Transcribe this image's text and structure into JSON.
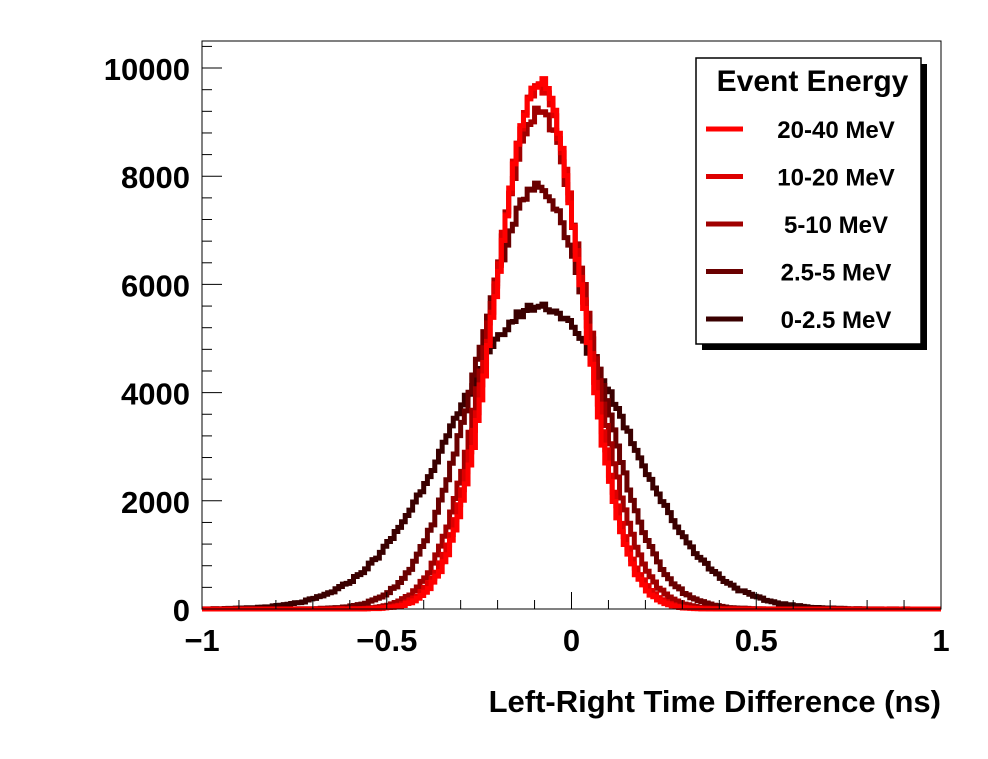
{
  "chart_data": {
    "type": "line",
    "style": "step",
    "title": "",
    "xlabel": "Left-Right Time Difference (ns)",
    "ylabel": "",
    "xlim": [
      -1,
      1
    ],
    "ylim": [
      0,
      10500
    ],
    "xticks": [
      -1,
      -0.5,
      0,
      0.5,
      1
    ],
    "xtick_labels": [
      "−1",
      "−0.5",
      "0",
      "0.5",
      "1"
    ],
    "yticks": [
      0,
      2000,
      4000,
      6000,
      8000,
      10000
    ],
    "ytick_labels": [
      "0",
      "2000",
      "4000",
      "6000",
      "8000",
      "10000"
    ],
    "grid": false,
    "legend": {
      "title": "Event Energy",
      "position": "top-right"
    },
    "series": [
      {
        "name": "20-40 MeV",
        "color": "#ff0000",
        "mean": -0.085,
        "peak": 9750,
        "sigma_left": 0.118,
        "sigma_right": 0.112
      },
      {
        "name": "10-20 MeV",
        "color": "#dd0000",
        "mean": -0.085,
        "peak": 9650,
        "sigma_left": 0.122,
        "sigma_right": 0.116
      },
      {
        "name": "5-10 MeV",
        "color": "#a00000",
        "mean": -0.085,
        "peak": 9200,
        "sigma_left": 0.132,
        "sigma_right": 0.128
      },
      {
        "name": "2.5-5 MeV",
        "color": "#6a0000",
        "mean": -0.09,
        "peak": 7800,
        "sigma_left": 0.16,
        "sigma_right": 0.155
      },
      {
        "name": "0-2.5 MeV",
        "color": "#3a0000",
        "mean": -0.085,
        "peak": 5600,
        "sigma_left": 0.235,
        "sigma_right": 0.23
      }
    ]
  }
}
